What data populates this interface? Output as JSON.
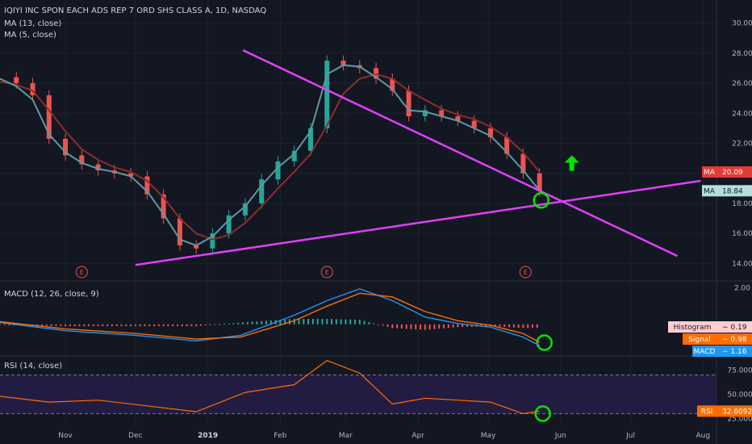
{
  "title": "IQIYI INC SPON EACH ADS REP 7 ORD SHS CLASS A, 1D, NASDAQ",
  "legend": [
    "MA (13, close)",
    "MA (5, close)"
  ],
  "colors": {
    "background": "#131722",
    "up": "#26a69a",
    "down": "#ef5350",
    "ma_slow": "#8b2e2e",
    "ma_fast": "#5b9aa0",
    "trendline": "#e040fb",
    "annotation": "#00e600",
    "macd_line": "#2196f3",
    "signal_line": "#ff6d00",
    "rsi_line": "#ff6d00",
    "rsi_band": "#2a1f4d"
  },
  "markers": [
    {
      "label": "E",
      "date": "2018-11-08"
    },
    {
      "label": "E",
      "date": "2019-02-21"
    },
    {
      "label": "E",
      "date": "2019-05-17"
    }
  ],
  "chart_data": [
    {
      "type": "line",
      "panel": "price",
      "ylim": [
        13,
        31
      ],
      "yticks": [
        "14.00",
        "16.00",
        "18.00",
        "20.00",
        "22.00",
        "24.00",
        "26.00",
        "28.00",
        "30.00"
      ],
      "x_tick_labels": [
        "Nov",
        "Dec",
        "2019",
        "Feb",
        "Mar",
        "Apr",
        "May",
        "Jun",
        "Jul",
        "Aug"
      ],
      "x_tick_dates": [
        "2018-11-01",
        "2018-12-01",
        "2019-01-01",
        "2019-02-01",
        "2019-03-01",
        "2019-04-01",
        "2019-05-01",
        "2019-06-01",
        "2019-07-01",
        "2019-08-01"
      ],
      "x_range": [
        "2018-10-04",
        "2019-08-04"
      ],
      "price_series_dates": [
        "2018-10-04",
        "2018-10-11",
        "2018-10-18",
        "2018-10-25",
        "2018-11-01",
        "2018-11-08",
        "2018-11-15",
        "2018-11-22",
        "2018-11-29",
        "2018-12-06",
        "2018-12-13",
        "2018-12-20",
        "2018-12-27",
        "2019-01-03",
        "2019-01-10",
        "2019-01-17",
        "2019-01-24",
        "2019-01-31",
        "2019-02-07",
        "2019-02-14",
        "2019-02-21",
        "2019-02-28",
        "2019-03-07",
        "2019-03-14",
        "2019-03-21",
        "2019-03-28",
        "2019-04-04",
        "2019-04-11",
        "2019-04-18",
        "2019-04-25",
        "2019-05-02",
        "2019-05-09",
        "2019-05-16",
        "2019-05-23"
      ],
      "price_series_close": [
        26.4,
        26.0,
        25.2,
        22.3,
        21.2,
        20.6,
        20.2,
        20.0,
        19.8,
        18.6,
        17.0,
        15.2,
        15.0,
        16.0,
        17.2,
        18.0,
        19.6,
        20.8,
        21.5,
        23.0,
        27.5,
        27.2,
        27.0,
        26.3,
        25.5,
        23.8,
        24.2,
        23.8,
        23.5,
        23.0,
        22.4,
        21.3,
        20.0,
        18.8
      ],
      "ma_fast_close": [
        26.3,
        25.8,
        24.9,
        22.6,
        21.4,
        20.7,
        20.3,
        20.1,
        19.8,
        18.8,
        17.3,
        15.6,
        15.2,
        15.8,
        16.9,
        17.8,
        19.2,
        20.4,
        21.3,
        22.8,
        26.6,
        27.2,
        27.1,
        26.4,
        25.6,
        24.2,
        24.1,
        23.8,
        23.5,
        23.0,
        22.5,
        21.4,
        20.2,
        18.84
      ],
      "ma_slow_close": [
        26.1,
        25.9,
        25.5,
        24.2,
        22.8,
        21.6,
        20.9,
        20.4,
        20.1,
        19.5,
        18.4,
        17.0,
        16.0,
        15.6,
        15.9,
        16.7,
        17.8,
        19.0,
        20.1,
        21.3,
        23.2,
        25.3,
        26.3,
        26.6,
        26.3,
        25.5,
        24.9,
        24.3,
        23.9,
        23.6,
        23.1,
        22.4,
        21.4,
        20.09
      ],
      "trendlines": [
        {
          "from": [
            "2018-12-01",
            13.9
          ],
          "to": [
            "2019-07-31",
            19.5
          ]
        },
        {
          "from": [
            "2019-01-16",
            28.2
          ],
          "to": [
            "2019-07-21",
            14.5
          ]
        }
      ],
      "price_tags": [
        {
          "label": "MA",
          "value": "20.09"
        },
        {
          "label": "MA",
          "value": "18.84"
        }
      ]
    },
    {
      "type": "bar",
      "panel": "macd",
      "label": "MACD (12, 26, close, 9)",
      "ylim": [
        -1.6,
        2.2
      ],
      "yticks": [
        "2.00"
      ],
      "series": [
        {
          "name": "Histogram",
          "value": "-0.19"
        },
        {
          "name": "Signal",
          "value": "-0.98"
        },
        {
          "name": "MACD",
          "value": "-1.16"
        }
      ],
      "macd_dates": [
        "2018-10-04",
        "2018-11-01",
        "2018-12-01",
        "2018-12-27",
        "2019-01-15",
        "2019-02-07",
        "2019-02-21",
        "2019-03-07",
        "2019-03-21",
        "2019-04-04",
        "2019-04-18",
        "2019-05-02",
        "2019-05-16",
        "2019-05-23"
      ],
      "macd_line": [
        0.1,
        -0.35,
        -0.6,
        -0.9,
        -0.6,
        0.5,
        1.3,
        1.95,
        1.3,
        0.4,
        0.05,
        -0.15,
        -0.7,
        -1.16
      ],
      "signal_line": [
        0.15,
        -0.25,
        -0.5,
        -0.8,
        -0.7,
        0.2,
        1.0,
        1.7,
        1.5,
        0.7,
        0.2,
        -0.05,
        -0.5,
        -0.98
      ],
      "histogram": [
        -0.05,
        -0.1,
        -0.1,
        -0.1,
        0.1,
        0.3,
        0.3,
        0.25,
        -0.2,
        -0.3,
        -0.15,
        -0.1,
        -0.2,
        -0.19
      ]
    },
    {
      "type": "line",
      "panel": "rsi",
      "label": "RSI (14, close)",
      "ylim": [
        22,
        88
      ],
      "yticks": [
        "75.0000",
        "50.0000",
        "25.0000"
      ],
      "band": [
        30,
        70
      ],
      "rsi_dates": [
        "2018-10-04",
        "2018-10-25",
        "2018-11-15",
        "2018-12-06",
        "2018-12-27",
        "2019-01-17",
        "2019-02-07",
        "2019-02-21",
        "2019-03-07",
        "2019-03-21",
        "2019-04-04",
        "2019-04-18",
        "2019-05-02",
        "2019-05-16",
        "2019-05-23"
      ],
      "rsi_values": [
        48,
        42,
        44,
        38,
        32,
        52,
        60,
        85,
        72,
        40,
        46,
        44,
        42,
        30,
        32.6
      ],
      "tag": {
        "label": "RSI",
        "value": "32.6092"
      }
    }
  ]
}
